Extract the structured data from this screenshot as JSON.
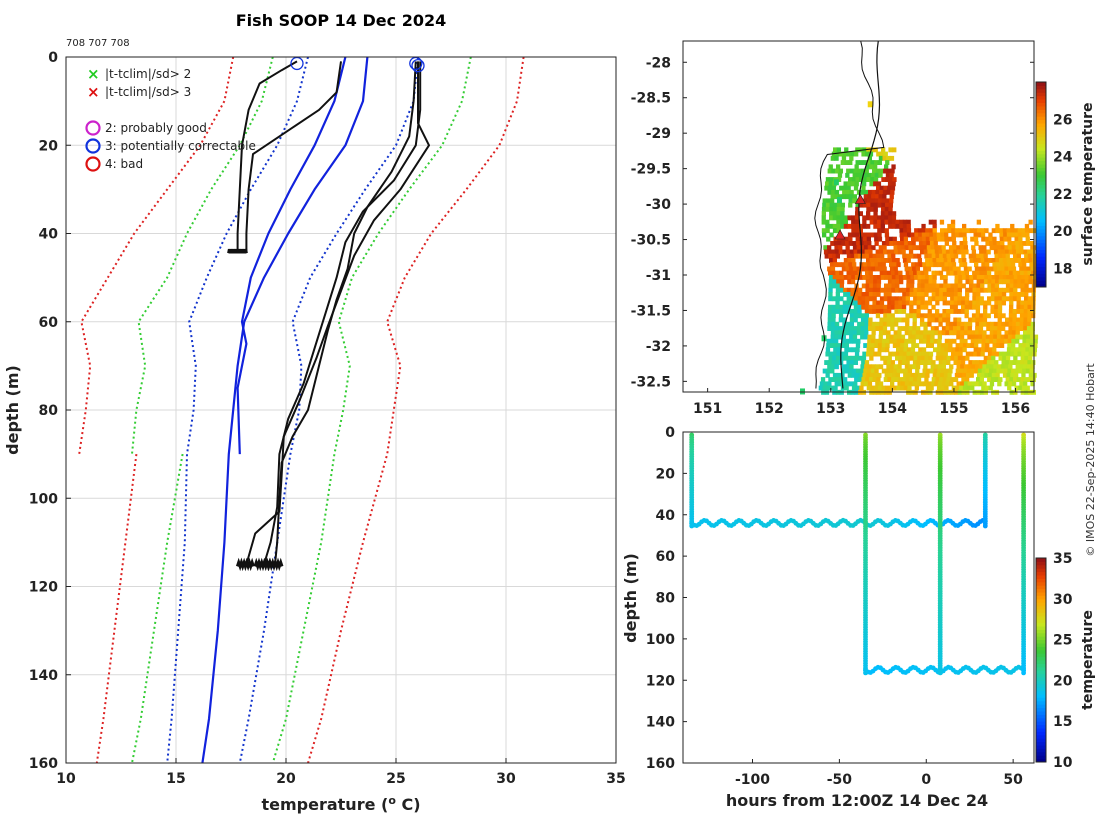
{
  "chart_data": [
    {
      "id": "profiles",
      "type": "line",
      "title": "Fish SOOP 14 Dec 2024",
      "subtitle": "708 707 708",
      "xlabel": "temperature (",
      "xlabel_sup": "o",
      "xlabel_suffix": " C)",
      "ylabel": "depth (m)",
      "xlim": [
        10,
        35
      ],
      "ylim": [
        0,
        160
      ],
      "xticks": [
        "10",
        "15",
        "20",
        "25",
        "30",
        "35"
      ],
      "yticks": [
        "0",
        "20",
        "40",
        "60",
        "80",
        "100",
        "120",
        "140",
        "160"
      ],
      "legend": [
        {
          "marker": "x",
          "color": "#22cc22",
          "label": "|t-tclim|/sd> 2"
        },
        {
          "marker": "x",
          "color": "#dd1111",
          "label": "|t-tclim|/sd> 3"
        },
        {
          "marker": "o",
          "color": "#cc22cc",
          "label": "2: probably good"
        },
        {
          "marker": "o",
          "color": "#1133dd",
          "label": "3: potentially correctable"
        },
        {
          "marker": "o",
          "color": "#dd1111",
          "label": "4: bad"
        }
      ],
      "series": [
        {
          "name": "climatology mean",
          "color": "#1122dd",
          "style": "solid",
          "width": 2.2,
          "points": [
            [
              23.7,
              0
            ],
            [
              23.5,
              10
            ],
            [
              22.7,
              20
            ],
            [
              21.3,
              30
            ],
            [
              20.1,
              40
            ],
            [
              19.0,
              50
            ],
            [
              18.1,
              60
            ],
            [
              17.8,
              70
            ],
            [
              17.4,
              90
            ],
            [
              17.2,
              110
            ],
            [
              16.9,
              130
            ],
            [
              16.5,
              150
            ],
            [
              16.2,
              160
            ]
          ]
        },
        {
          "name": "climatology early",
          "color": "#1122dd",
          "style": "solid",
          "width": 2.2,
          "points": [
            [
              22.7,
              0
            ],
            [
              22.2,
              10
            ],
            [
              21.3,
              20
            ],
            [
              20.2,
              30
            ],
            [
              19.2,
              40
            ],
            [
              18.4,
              50
            ],
            [
              18.0,
              60
            ],
            [
              18.2,
              65
            ],
            [
              17.8,
              75
            ],
            [
              17.9,
              90
            ]
          ]
        },
        {
          "name": "clim -1sd",
          "color": "#1133cc",
          "style": "dotted",
          "width": 2,
          "points": [
            [
              21.0,
              0
            ],
            [
              20.5,
              10
            ],
            [
              19.6,
              20
            ],
            [
              18.4,
              30
            ],
            [
              17.3,
              40
            ],
            [
              16.4,
              50
            ],
            [
              15.6,
              60
            ],
            [
              15.9,
              70
            ],
            [
              15.8,
              80
            ],
            [
              15.5,
              90
            ],
            [
              15.4,
              110
            ],
            [
              15.1,
              130
            ],
            [
              14.8,
              150
            ],
            [
              14.6,
              160
            ]
          ]
        },
        {
          "name": "clim +1sd",
          "color": "#1133cc",
          "style": "dotted",
          "width": 2,
          "points": [
            [
              26.0,
              0
            ],
            [
              25.8,
              10
            ],
            [
              25.0,
              20
            ],
            [
              23.6,
              30
            ],
            [
              22.3,
              40
            ],
            [
              21.1,
              50
            ],
            [
              20.3,
              60
            ],
            [
              20.7,
              70
            ],
            [
              20.6,
              80
            ],
            [
              20.2,
              90
            ],
            [
              19.6,
              110
            ],
            [
              19.0,
              130
            ],
            [
              18.3,
              150
            ],
            [
              17.9,
              160
            ]
          ]
        },
        {
          "name": "clim -2sd",
          "color": "#33cc33",
          "style": "dotted",
          "width": 2,
          "points": [
            [
              19.4,
              0
            ],
            [
              18.9,
              10
            ],
            [
              17.9,
              20
            ],
            [
              16.6,
              30
            ],
            [
              15.5,
              40
            ],
            [
              14.6,
              50
            ],
            [
              13.3,
              60
            ],
            [
              13.6,
              70
            ],
            [
              13.2,
              80
            ],
            [
              13.0,
              90
            ]
          ]
        },
        {
          "name": "clim +2sd",
          "color": "#33cc33",
          "style": "dotted",
          "width": 2,
          "points": [
            [
              28.4,
              0
            ],
            [
              28.0,
              10
            ],
            [
              27.1,
              20
            ],
            [
              25.6,
              30
            ],
            [
              24.2,
              40
            ],
            [
              23.0,
              50
            ],
            [
              22.4,
              60
            ],
            [
              22.9,
              70
            ],
            [
              22.6,
              80
            ],
            [
              22.2,
              90
            ],
            [
              21.6,
              110
            ],
            [
              20.8,
              130
            ],
            [
              20.0,
              150
            ],
            [
              19.4,
              160
            ]
          ]
        },
        {
          "name": "clim -2sd deep",
          "color": "#33cc33",
          "style": "dotted",
          "width": 2,
          "points": [
            [
              15.3,
              90
            ],
            [
              14.6,
              110
            ],
            [
              14.0,
              130
            ],
            [
              13.4,
              150
            ],
            [
              13.0,
              160
            ]
          ]
        },
        {
          "name": "clim -3sd",
          "color": "#dd2222",
          "style": "dotted",
          "width": 2,
          "points": [
            [
              17.6,
              0
            ],
            [
              17.2,
              10
            ],
            [
              16.1,
              20
            ],
            [
              14.6,
              30
            ],
            [
              13.1,
              40
            ],
            [
              11.9,
              50
            ],
            [
              10.7,
              60
            ],
            [
              11.1,
              70
            ],
            [
              10.9,
              80
            ],
            [
              10.6,
              90
            ]
          ]
        },
        {
          "name": "clim +3sd",
          "color": "#dd2222",
          "style": "dotted",
          "width": 2,
          "points": [
            [
              30.8,
              0
            ],
            [
              30.5,
              10
            ],
            [
              29.7,
              20
            ],
            [
              28.2,
              30
            ],
            [
              26.6,
              40
            ],
            [
              25.4,
              50
            ],
            [
              24.6,
              60
            ],
            [
              25.2,
              70
            ],
            [
              24.9,
              80
            ],
            [
              24.6,
              90
            ],
            [
              23.5,
              110
            ],
            [
              22.5,
              130
            ],
            [
              21.6,
              150
            ],
            [
              21.0,
              160
            ]
          ]
        },
        {
          "name": "clim -3sd deep",
          "color": "#dd2222",
          "style": "dotted",
          "width": 2,
          "points": [
            [
              13.2,
              90
            ],
            [
              12.7,
              110
            ],
            [
              12.2,
              130
            ],
            [
              11.7,
              150
            ],
            [
              11.4,
              160
            ]
          ]
        },
        {
          "name": "XBT drop 1",
          "color": "#111111",
          "style": "solid",
          "width": 2,
          "points": [
            [
              20.5,
              1
            ],
            [
              19.8,
              3
            ],
            [
              18.8,
              6
            ],
            [
              18.3,
              12
            ],
            [
              18.0,
              20
            ],
            [
              17.9,
              30
            ],
            [
              17.8,
              40
            ],
            [
              17.8,
              44
            ]
          ]
        },
        {
          "name": "XBT drop 2",
          "color": "#111111",
          "style": "solid",
          "width": 2,
          "points": [
            [
              22.5,
              1
            ],
            [
              22.3,
              8
            ],
            [
              21.5,
              12
            ],
            [
              20.3,
              16
            ],
            [
              18.5,
              22
            ],
            [
              18.3,
              30
            ],
            [
              18.2,
              40
            ],
            [
              18.2,
              44
            ]
          ]
        },
        {
          "name": "XBT drop 3",
          "color": "#111111",
          "style": "solid",
          "width": 2,
          "points": [
            [
              25.9,
              1
            ],
            [
              25.8,
              10
            ],
            [
              25.6,
              18
            ],
            [
              24.8,
              26
            ],
            [
              23.7,
              34
            ],
            [
              23.1,
              40
            ],
            [
              22.8,
              48
            ],
            [
              22.3,
              55
            ],
            [
              21.9,
              62
            ],
            [
              21.5,
              70
            ],
            [
              21.0,
              80
            ],
            [
              20.3,
              86
            ],
            [
              19.8,
              92
            ],
            [
              19.7,
              100
            ],
            [
              19.6,
              110
            ],
            [
              19.5,
              115
            ]
          ]
        },
        {
          "name": "XBT drop 4",
          "color": "#111111",
          "style": "solid",
          "width": 2,
          "points": [
            [
              26.1,
              1
            ],
            [
              26.1,
              12
            ],
            [
              25.9,
              20
            ],
            [
              24.9,
              28
            ],
            [
              23.5,
              35
            ],
            [
              22.7,
              42
            ],
            [
              22.3,
              50
            ],
            [
              21.8,
              58
            ],
            [
              21.3,
              66
            ],
            [
              20.8,
              74
            ],
            [
              20.1,
              82
            ],
            [
              19.7,
              90
            ],
            [
              19.6,
              102
            ],
            [
              19.3,
              110
            ],
            [
              19.0,
              115
            ]
          ]
        },
        {
          "name": "XBT drop 5",
          "color": "#111111",
          "style": "solid",
          "width": 2,
          "points": [
            [
              26.0,
              1
            ],
            [
              26.0,
              15
            ],
            [
              26.5,
              20
            ],
            [
              25.2,
              30
            ],
            [
              24.0,
              37
            ],
            [
              23.1,
              45
            ],
            [
              22.5,
              53
            ],
            [
              21.9,
              61
            ],
            [
              21.4,
              68
            ],
            [
              20.6,
              78
            ],
            [
              19.9,
              86
            ],
            [
              19.8,
              95
            ],
            [
              19.7,
              103
            ],
            [
              18.6,
              108
            ],
            [
              18.2,
              115
            ]
          ]
        }
      ],
      "flag_circles": [
        {
          "temp": 20.5,
          "depth": 1,
          "color": "#1133dd"
        },
        {
          "temp": 25.9,
          "depth": 1,
          "color": "#1133dd"
        },
        {
          "temp": 26.0,
          "depth": 1.5,
          "color": "#1133dd"
        }
      ]
    },
    {
      "id": "sst_map",
      "type": "heatmap",
      "title": "",
      "xlim": [
        150.6,
        156.3
      ],
      "ylim": [
        -32.65,
        -27.7
      ],
      "xticks": [
        "151",
        "152",
        "153",
        "154",
        "155",
        "156"
      ],
      "yticks": [
        "-28",
        "-28.5",
        "-29",
        "-29.5",
        "-30",
        "-30.5",
        "-31",
        "-31.5",
        "-32",
        "-32.5"
      ],
      "colorbar": {
        "label": "surface temperature",
        "ticks": [
          "18",
          "20",
          "22",
          "24",
          "26"
        ],
        "range": [
          17,
          28
        ]
      },
      "region_values": [
        {
          "lon": 153.75,
          "lat": -30.3,
          "value": 27.5
        },
        {
          "lon": 153.9,
          "lat": -30.8,
          "value": 26.6
        },
        {
          "lon": 154.8,
          "lat": -31.2,
          "value": 26.0
        },
        {
          "lon": 155.5,
          "lat": -31.7,
          "value": 25.8
        },
        {
          "lon": 154.2,
          "lat": -32.1,
          "value": 25.2
        },
        {
          "lon": 156.0,
          "lat": -32.35,
          "value": 24.4
        },
        {
          "lon": 153.05,
          "lat": -29.7,
          "value": 23.2
        },
        {
          "lon": 152.85,
          "lat": -31.9,
          "value": 21.6
        },
        {
          "lon": 153.6,
          "lat": -28.5,
          "value": 25.0
        }
      ],
      "track": [
        {
          "lon": 153.48,
          "lat": -29.95,
          "color": "#dd2222"
        },
        {
          "lon": 153.15,
          "lat": -30.45,
          "color": "#dd2222"
        }
      ]
    },
    {
      "id": "depth_time",
      "type": "scatter",
      "xlabel": "hours from 12:00Z 14 Dec 24",
      "ylabel": "depth (m)",
      "xlim": [
        -140,
        62
      ],
      "ylim": [
        0,
        160
      ],
      "xticks": [
        "-100",
        "-50",
        "0",
        "50"
      ],
      "yticks": [
        "0",
        "20",
        "40",
        "60",
        "80",
        "100",
        "120",
        "140",
        "160"
      ],
      "colorbar": {
        "label": "temperature",
        "ticks": [
          "10",
          "15",
          "20",
          "25",
          "30",
          "35"
        ],
        "range": [
          10,
          35
        ]
      },
      "drops": [
        {
          "hours": -135,
          "bottom": 44,
          "surface_temp": 22.5,
          "bottom_temp": 18.5
        },
        {
          "hours": -35,
          "bottom": 115,
          "surface_temp": 25.5,
          "bottom_temp": 18.5
        },
        {
          "hours": 8,
          "bottom": 115,
          "surface_temp": 26.0,
          "bottom_temp": 18.8
        },
        {
          "hours": 34,
          "bottom": 44,
          "surface_temp": 21.0,
          "bottom_temp": 17.0
        },
        {
          "hours": 56,
          "bottom": 115,
          "surface_temp": 27.5,
          "bottom_temp": 18.0
        }
      ],
      "segments": [
        {
          "from_hours": -135,
          "to_hours": -35,
          "depth": 44,
          "temp_start": 18.5,
          "temp_end": 19.5
        },
        {
          "from_hours": -35,
          "to_hours": 34,
          "depth": 44,
          "temp_start": 19.5,
          "temp_end": 16.5
        },
        {
          "from_hours": -35,
          "to_hours": 56,
          "depth": 115,
          "temp_start": 18.0,
          "temp_end": 18.8
        }
      ]
    }
  ],
  "side_label": "© IMOS 22-Sep-2025 14:40 Hobart"
}
